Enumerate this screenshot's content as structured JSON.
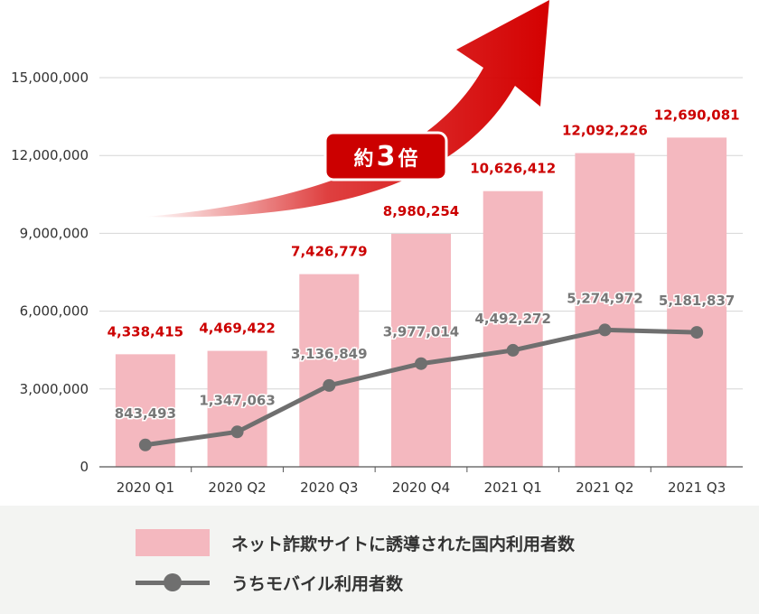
{
  "chart_data": {
    "type": "bar",
    "categories": [
      "2020 Q1",
      "2020 Q2",
      "2020 Q3",
      "2020 Q4",
      "2021 Q1",
      "2021 Q2",
      "2021 Q3"
    ],
    "series": [
      {
        "name": "ネット詐欺サイトに誘導された国内利用者数",
        "type": "bar",
        "values": [
          4338415,
          4469422,
          7426779,
          8980254,
          10626412,
          12092226,
          12690081
        ],
        "labels": [
          "4,338,415",
          "4,469,422",
          "7,426,779",
          "8,980,254",
          "10,626,412",
          "12,092,226",
          "12,690,081"
        ],
        "color": "#f4b8bf",
        "label_color": "#cc0000"
      },
      {
        "name": "うちモバイル利用者数",
        "type": "line",
        "values": [
          843493,
          1347063,
          3136849,
          3977014,
          4492272,
          5274972,
          5181837
        ],
        "labels": [
          "843,493",
          "1,347,063",
          "3,136,849",
          "3,977,014",
          "4,492,272",
          "5,274,972",
          "5,181,837"
        ],
        "color": "#6f6f6f",
        "label_color": "#777777"
      }
    ],
    "ylim": [
      0,
      15000000
    ],
    "yticks": [
      0,
      3000000,
      6000000,
      9000000,
      12000000,
      15000000
    ],
    "ytick_labels": [
      "0",
      "3,000,000",
      "6,000,000",
      "9,000,000",
      "12,000,000",
      "15,000,000"
    ],
    "grid": true,
    "annotation": {
      "prefix": "約",
      "number": "3",
      "suffix": "倍",
      "color": "#cc0000"
    }
  },
  "legend": {
    "bar_label": "ネット詐欺サイトに誘導された国内利用者数",
    "line_label": "うちモバイル利用者数"
  }
}
